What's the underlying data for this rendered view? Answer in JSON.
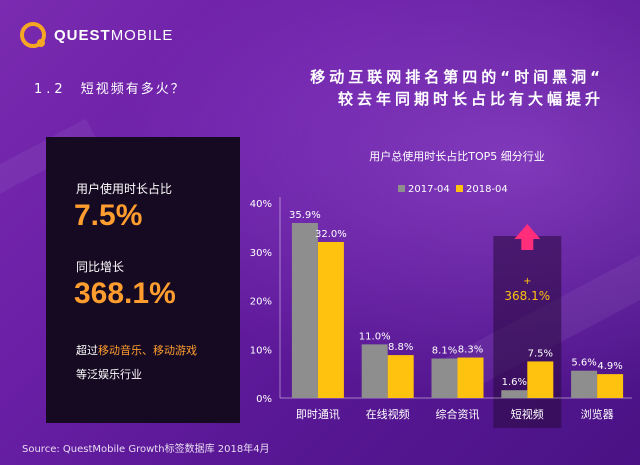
{
  "logo": {
    "part1": "QUEST",
    "part2": "MOBILE"
  },
  "section": {
    "number": "1.2",
    "title": "短视频有多火？"
  },
  "headline": {
    "line1": "移动互联网排名第四的“时间黑洞“",
    "line2": "较去年同期时长占比有大幅提升"
  },
  "panel": {
    "label1": "用户使用时长占比",
    "value1": "7.5%",
    "label2": "同比增长",
    "value2": "368.1%",
    "note_prefix": "超过",
    "note_highlight": "移动音乐、移动游戏",
    "note_line2": "等泛娱乐行业"
  },
  "source": "Source:  QuestMobile Growth标签数据库 2018年4月",
  "colors": {
    "series1": "#8e8e8e",
    "series2": "#ffc20e",
    "accent": "#ff9d2e",
    "arrow": "#ff2d7a"
  },
  "chart_data": {
    "type": "bar",
    "title": "用户总使用时长占比TOP5 细分行业",
    "categories": [
      "即时通讯",
      "在线视频",
      "综合资讯",
      "短视频",
      "浏览器"
    ],
    "series": [
      {
        "name": "2017-04",
        "values": [
          35.9,
          11.0,
          8.1,
          1.6,
          5.6
        ],
        "labels": [
          "35.9%",
          "11.0%",
          "8.1%",
          "1.6%",
          "5.6%"
        ]
      },
      {
        "name": "2018-04",
        "values": [
          32.0,
          8.8,
          8.3,
          7.5,
          4.9
        ],
        "labels": [
          "32.0%",
          "8.8%",
          "8.3%",
          "7.5%",
          "4.9%"
        ]
      }
    ],
    "yticks": [
      "0%",
      "10%",
      "20%",
      "30%",
      "40%"
    ],
    "ylim": [
      0,
      40
    ],
    "legend_position": "top",
    "highlight": {
      "category": "短视频",
      "growth_sign": "+",
      "growth_label": "368.1%"
    },
    "grid": false
  }
}
